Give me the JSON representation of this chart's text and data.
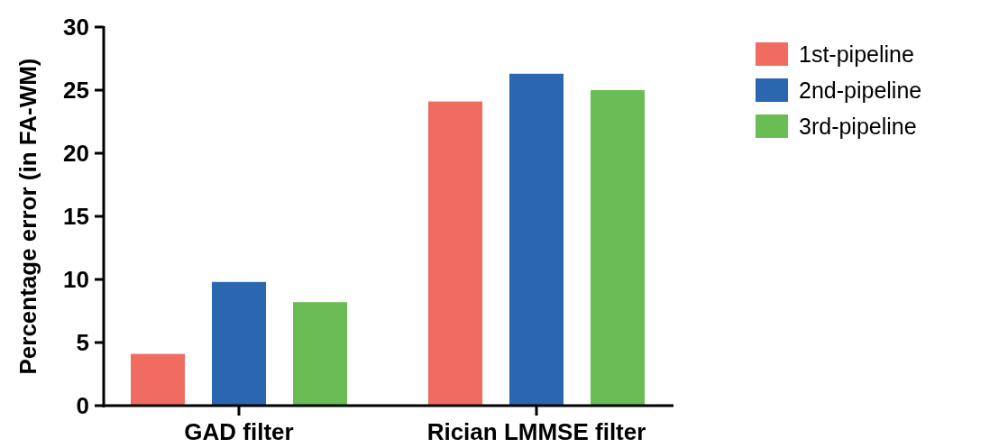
{
  "chart_data": {
    "type": "bar",
    "ylabel": "Percentage error (in FA-WM)",
    "categories": [
      "GAD filter",
      "Rician LMMSE filter"
    ],
    "series": [
      {
        "name": "1st-pipeline",
        "color": "#f06c60",
        "values": [
          4.1,
          24.1
        ]
      },
      {
        "name": "2nd-pipeline",
        "color": "#2a67b0",
        "values": [
          9.8,
          26.3
        ]
      },
      {
        "name": "3rd-pipeline",
        "color": "#6abd54",
        "values": [
          8.2,
          25.0
        ]
      }
    ],
    "ylim": [
      0,
      30
    ],
    "yticks": [
      0,
      5,
      10,
      15,
      20,
      25,
      30
    ],
    "grid": false,
    "legend": "right"
  }
}
